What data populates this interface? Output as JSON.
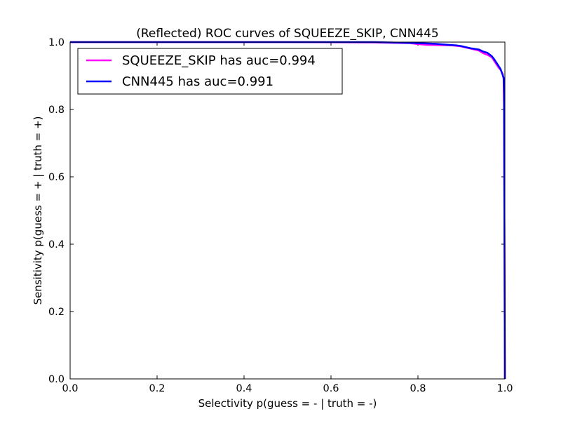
{
  "chart_data": {
    "type": "line",
    "title": "(Reflected) ROC curves of SQUEEZE_SKIP, CNN445",
    "xlabel": "Selectivity p(guess = - | truth = -)",
    "ylabel": "Sensitivity p(guess = + | truth = +)",
    "xlim": [
      0.0,
      1.0
    ],
    "ylim": [
      0.0,
      1.0
    ],
    "xticks": [
      "0.0",
      "0.2",
      "0.4",
      "0.6",
      "0.8",
      "1.0"
    ],
    "yticks": [
      "0.0",
      "0.2",
      "0.4",
      "0.6",
      "0.8",
      "1.0"
    ],
    "grid": false,
    "legend_position": "top-left",
    "series": [
      {
        "name": "SQUEEZE_SKIP has auc=0.994",
        "color": "#ff00ff",
        "x": [
          0.0,
          0.5,
          0.7,
          0.78,
          0.8,
          0.82,
          0.85,
          0.88,
          0.9,
          0.92,
          0.94,
          0.95,
          0.96,
          0.97,
          0.975,
          0.98,
          0.985,
          0.99,
          0.995,
          0.997,
          0.998,
          0.999,
          1.0
        ],
        "y": [
          1.0,
          1.0,
          0.999,
          0.997,
          0.994,
          0.992,
          0.991,
          0.99,
          0.987,
          0.981,
          0.975,
          0.967,
          0.962,
          0.955,
          0.945,
          0.935,
          0.925,
          0.918,
          0.905,
          0.89,
          0.8,
          0.4,
          0.0
        ]
      },
      {
        "name": "CNN445 has auc=0.991",
        "color": "#0000ff",
        "x": [
          0.0,
          0.5,
          0.7,
          0.8,
          0.84,
          0.87,
          0.89,
          0.9,
          0.91,
          0.92,
          0.94,
          0.95,
          0.96,
          0.97,
          0.975,
          0.98,
          0.985,
          0.99,
          0.995,
          0.996,
          0.997,
          0.998,
          0.999,
          1.0
        ],
        "y": [
          1.0,
          1.0,
          1.0,
          0.997,
          0.995,
          0.992,
          0.99,
          0.988,
          0.985,
          0.982,
          0.978,
          0.972,
          0.968,
          0.958,
          0.95,
          0.94,
          0.93,
          0.92,
          0.902,
          0.898,
          0.895,
          0.85,
          0.4,
          0.0
        ]
      }
    ]
  }
}
